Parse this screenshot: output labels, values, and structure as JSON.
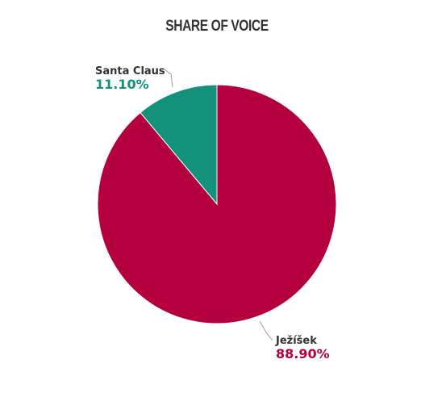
{
  "chart_data": {
    "type": "pie",
    "title": "SHARE OF VOICE",
    "categories": [
      "Santa Claus",
      "Ježíšek"
    ],
    "values": [
      11.1,
      88.9
    ],
    "value_labels": [
      "11.10%",
      "88.90%"
    ],
    "colors": [
      "#13917a",
      "#b5003f"
    ]
  }
}
